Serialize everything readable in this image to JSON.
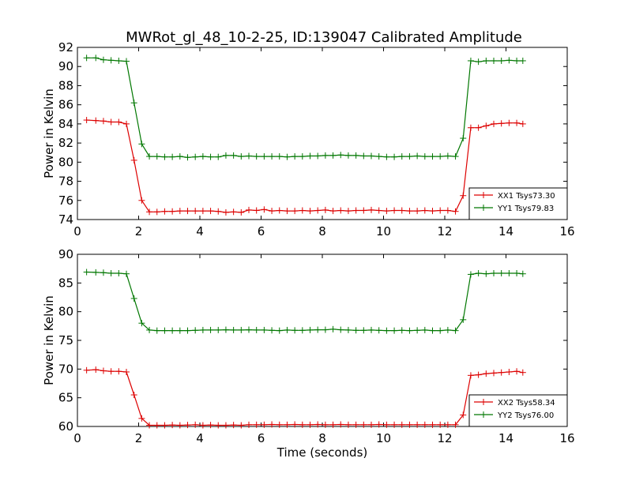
{
  "title": "MWRot_gl_48_10-2-25, ID:139047 Calibrated Amplitude",
  "chart_data": [
    {
      "type": "line",
      "title": "MWRot_gl_48_10-2-25, ID:139047 Calibrated Amplitude",
      "xlabel": "",
      "ylabel": "Power in Kelvin",
      "xlim": [
        0,
        16
      ],
      "ylim": [
        74,
        92
      ],
      "xticks": [
        0,
        2,
        4,
        6,
        8,
        10,
        12,
        14,
        16
      ],
      "yticks": [
        74,
        76,
        78,
        80,
        82,
        84,
        86,
        88,
        90,
        92
      ],
      "grid": false,
      "legend_position": "lower-right",
      "x": [
        0.3,
        0.6,
        0.85,
        1.1,
        1.35,
        1.6,
        1.85,
        2.1,
        2.35,
        2.6,
        2.85,
        3.1,
        3.35,
        3.6,
        3.85,
        4.1,
        4.35,
        4.6,
        4.85,
        5.1,
        5.35,
        5.6,
        5.85,
        6.1,
        6.35,
        6.6,
        6.85,
        7.1,
        7.35,
        7.6,
        7.85,
        8.1,
        8.35,
        8.6,
        8.85,
        9.1,
        9.35,
        9.6,
        9.85,
        10.1,
        10.35,
        10.6,
        10.85,
        11.1,
        11.35,
        11.6,
        11.85,
        12.1,
        12.35,
        12.6,
        12.85,
        13.1,
        13.35,
        13.6,
        13.85,
        14.1,
        14.35,
        14.55
      ],
      "series": [
        {
          "name": "XX1 Tsys73.30",
          "color": "#dd0000",
          "values": [
            84.4,
            84.35,
            84.3,
            84.2,
            84.2,
            84.0,
            80.2,
            76.0,
            74.8,
            74.8,
            74.85,
            74.85,
            74.9,
            74.9,
            74.9,
            74.9,
            74.9,
            74.85,
            74.75,
            74.8,
            74.75,
            75.0,
            74.95,
            75.05,
            74.9,
            74.95,
            74.9,
            74.9,
            74.95,
            74.9,
            74.95,
            75.0,
            74.9,
            74.95,
            74.9,
            74.95,
            74.95,
            75.0,
            74.95,
            74.9,
            74.95,
            74.95,
            74.9,
            74.9,
            74.95,
            74.9,
            74.95,
            74.95,
            74.85,
            76.5,
            83.6,
            83.6,
            83.8,
            84.0,
            84.05,
            84.1,
            84.1,
            84.0
          ]
        },
        {
          "name": "YY1 Tsys79.83",
          "color": "#007700",
          "values": [
            90.9,
            90.9,
            90.7,
            90.65,
            90.6,
            90.55,
            86.2,
            81.9,
            80.6,
            80.6,
            80.55,
            80.55,
            80.6,
            80.5,
            80.55,
            80.6,
            80.55,
            80.55,
            80.7,
            80.7,
            80.6,
            80.65,
            80.6,
            80.6,
            80.6,
            80.6,
            80.55,
            80.6,
            80.6,
            80.65,
            80.65,
            80.7,
            80.7,
            80.75,
            80.7,
            80.7,
            80.65,
            80.65,
            80.6,
            80.55,
            80.55,
            80.6,
            80.6,
            80.65,
            80.6,
            80.6,
            80.6,
            80.65,
            80.6,
            82.5,
            90.6,
            90.5,
            90.6,
            90.6,
            90.6,
            90.65,
            90.6,
            90.6
          ]
        }
      ]
    },
    {
      "type": "line",
      "title": "",
      "xlabel": "Time (seconds)",
      "ylabel": "Power in Kelvin",
      "xlim": [
        0,
        16
      ],
      "ylim": [
        60,
        90
      ],
      "xticks": [
        0,
        2,
        4,
        6,
        8,
        10,
        12,
        14,
        16
      ],
      "yticks": [
        60,
        65,
        70,
        75,
        80,
        85,
        90
      ],
      "grid": false,
      "legend_position": "lower-right",
      "x": [
        0.3,
        0.6,
        0.85,
        1.1,
        1.35,
        1.6,
        1.85,
        2.1,
        2.35,
        2.6,
        2.85,
        3.1,
        3.35,
        3.6,
        3.85,
        4.1,
        4.35,
        4.6,
        4.85,
        5.1,
        5.35,
        5.6,
        5.85,
        6.1,
        6.35,
        6.6,
        6.85,
        7.1,
        7.35,
        7.6,
        7.85,
        8.1,
        8.35,
        8.6,
        8.85,
        9.1,
        9.35,
        9.6,
        9.85,
        10.1,
        10.35,
        10.6,
        10.85,
        11.1,
        11.35,
        11.6,
        11.85,
        12.1,
        12.35,
        12.6,
        12.85,
        13.1,
        13.35,
        13.6,
        13.85,
        14.1,
        14.35,
        14.55
      ],
      "series": [
        {
          "name": "XX2 Tsys58.34",
          "color": "#dd0000",
          "values": [
            69.8,
            69.9,
            69.7,
            69.6,
            69.6,
            69.5,
            65.5,
            61.4,
            60.2,
            60.2,
            60.2,
            60.25,
            60.2,
            60.25,
            60.3,
            60.2,
            60.25,
            60.2,
            60.2,
            60.25,
            60.2,
            60.3,
            60.3,
            60.3,
            60.35,
            60.3,
            60.3,
            60.35,
            60.3,
            60.3,
            60.35,
            60.3,
            60.3,
            60.35,
            60.3,
            60.3,
            60.3,
            60.3,
            60.35,
            60.3,
            60.3,
            60.3,
            60.3,
            60.3,
            60.3,
            60.3,
            60.3,
            60.3,
            60.3,
            62.0,
            68.9,
            69.0,
            69.2,
            69.3,
            69.4,
            69.5,
            69.6,
            69.4
          ]
        },
        {
          "name": "YY2 Tsys76.00",
          "color": "#007700",
          "values": [
            86.9,
            86.85,
            86.8,
            86.7,
            86.7,
            86.6,
            82.3,
            78.0,
            76.8,
            76.7,
            76.7,
            76.7,
            76.7,
            76.7,
            76.75,
            76.8,
            76.8,
            76.8,
            76.85,
            76.8,
            76.8,
            76.85,
            76.8,
            76.8,
            76.75,
            76.7,
            76.8,
            76.75,
            76.75,
            76.8,
            76.85,
            76.85,
            76.95,
            76.85,
            76.8,
            76.75,
            76.75,
            76.8,
            76.75,
            76.7,
            76.7,
            76.75,
            76.7,
            76.75,
            76.8,
            76.7,
            76.7,
            76.8,
            76.7,
            78.6,
            86.5,
            86.7,
            86.6,
            86.7,
            86.7,
            86.7,
            86.7,
            86.6
          ]
        }
      ]
    }
  ]
}
